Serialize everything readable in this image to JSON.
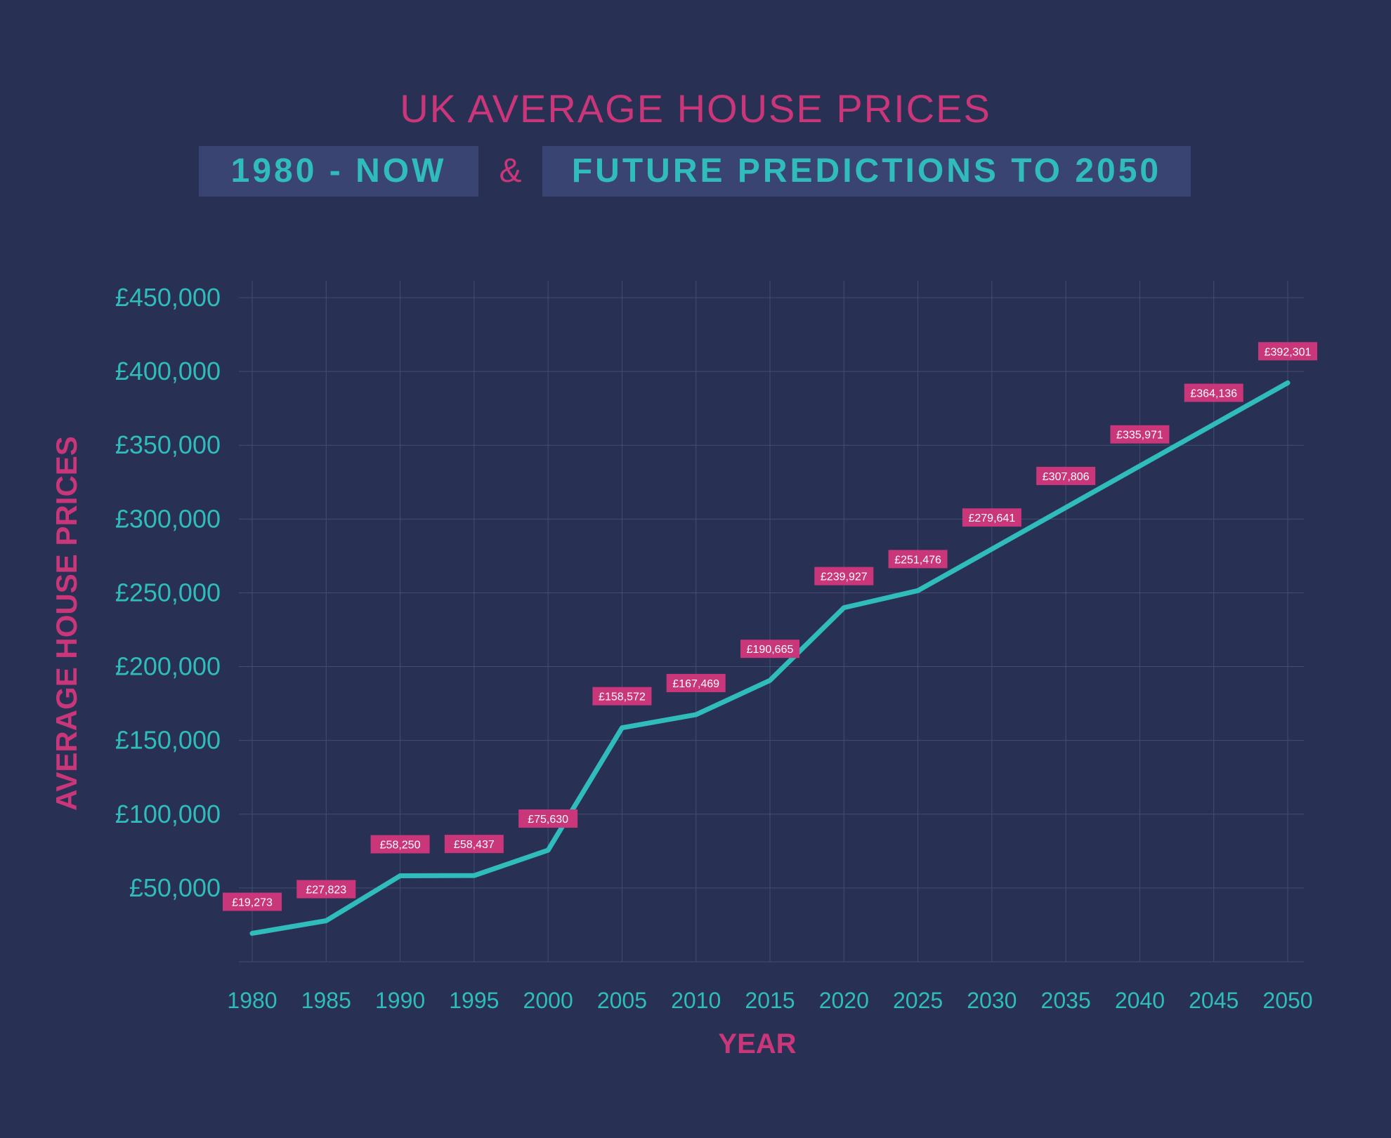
{
  "colors": {
    "background": "#283153",
    "accent_pink": "#c9367a",
    "accent_teal": "#2fbcba",
    "box_fill": "#3a4473",
    "grid": "#434d72"
  },
  "header": {
    "title": "UK AVERAGE HOUSE PRICES",
    "subtitle_left": "1980 - NOW",
    "subtitle_amp": "&",
    "subtitle_right": "FUTURE PREDICTIONS TO 2050"
  },
  "chart_data": {
    "type": "line",
    "title": "UK AVERAGE HOUSE PRICES",
    "xlabel": "YEAR",
    "ylabel": "AVERAGE HOUSE PRICES",
    "x": [
      1980,
      1985,
      1990,
      1995,
      2000,
      2005,
      2010,
      2015,
      2020,
      2025,
      2030,
      2035,
      2040,
      2045,
      2050
    ],
    "series": [
      {
        "values": [
          19273,
          27823,
          58250,
          58437,
          75630,
          158572,
          167469,
          190665,
          239927,
          251476,
          279641,
          307806,
          335971,
          364136,
          392301
        ],
        "labels": [
          "£19,273",
          "£27,823",
          "£58,250",
          "£58,437",
          "£75,630",
          "£158,572",
          "£167,469",
          "£190,665",
          "£239,927",
          "£251,476",
          "£279,641",
          "£307,806",
          "£335,971",
          "£364,136",
          "£392,301"
        ],
        "color": "#2fbcba"
      }
    ],
    "ylim": [
      0,
      450000
    ],
    "y_ticks": [
      50000,
      100000,
      150000,
      200000,
      250000,
      300000,
      350000,
      400000,
      450000
    ],
    "y_tick_labels": [
      "£50,000",
      "£100,000",
      "£150,000",
      "£200,000",
      "£250,000",
      "£300,000",
      "£350,000",
      "£400,000",
      "£450,000"
    ],
    "x_tick_labels": [
      "1980",
      "1985",
      "1990",
      "1995",
      "2000",
      "2005",
      "2010",
      "2015",
      "2020",
      "2025",
      "2030",
      "2035",
      "2040",
      "2045",
      "2050"
    ],
    "grid": true,
    "legend": "none"
  }
}
